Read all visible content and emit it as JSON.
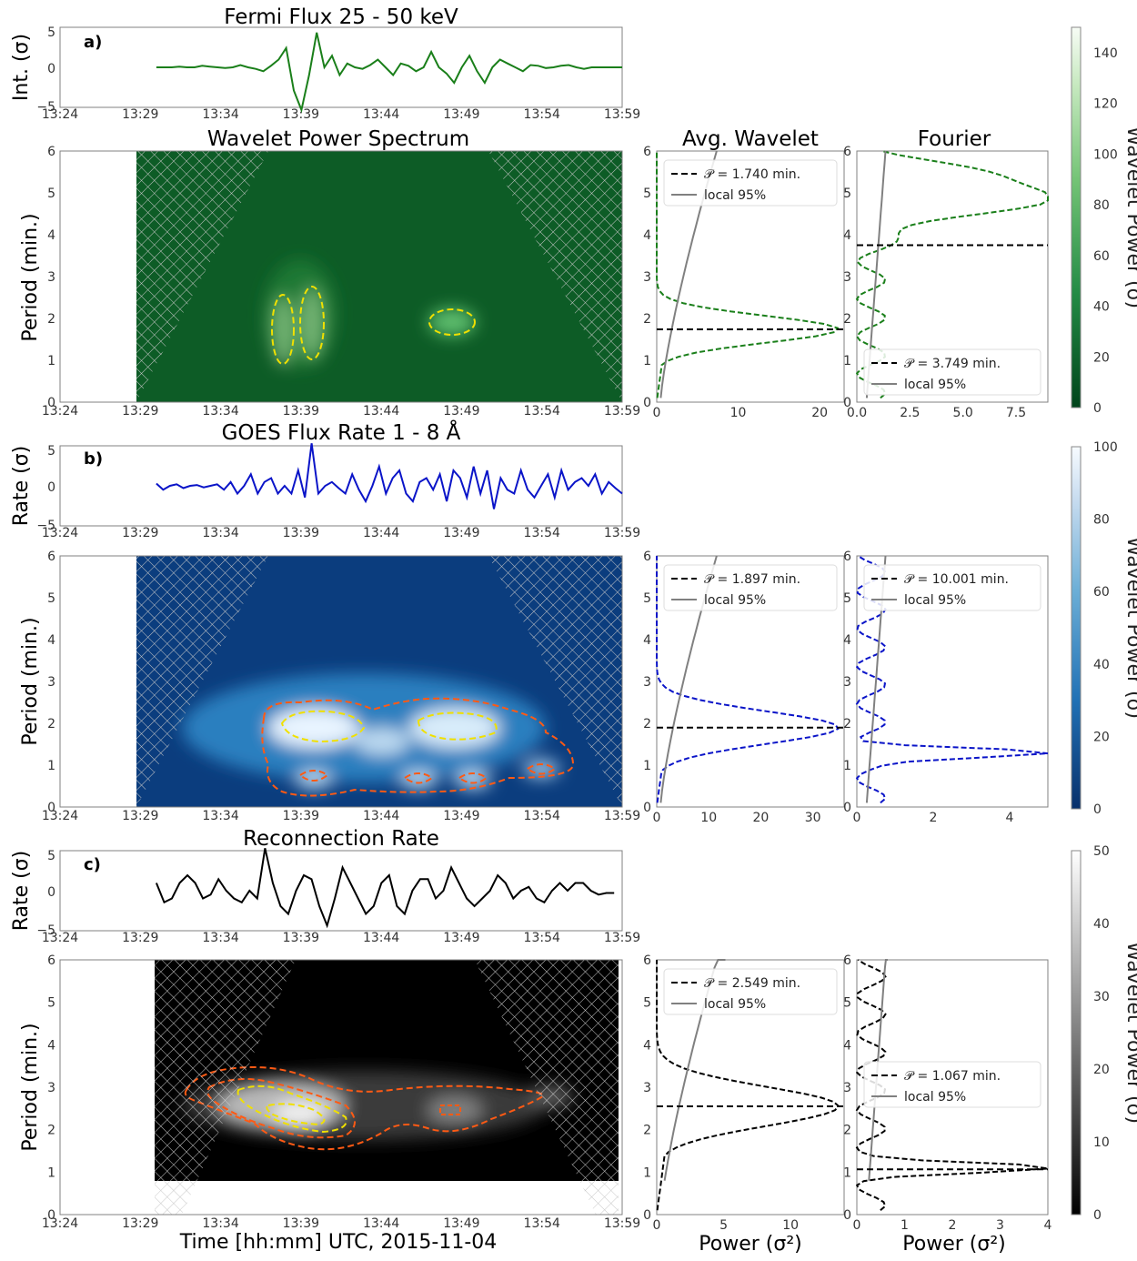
{
  "figure": {
    "xlabel": "Time [hh:mm] UTC, 2015-11-04",
    "power_label": "Power (σ²)",
    "avg_title": "Avg. Wavelet",
    "fourier_title": "Fourier",
    "time_ticks": [
      "13:24",
      "13:29",
      "13:34",
      "13:39",
      "13:44",
      "13:49",
      "13:54",
      "13:59"
    ],
    "period_ticks": [
      0,
      1,
      2,
      3,
      4,
      5,
      6
    ],
    "period_label": "Period (min.)",
    "colorbar_label": "Wavelet Power (σ)"
  },
  "rows": [
    {
      "letter": "a)",
      "title": "Fermi Flux 25 - 50 keV",
      "ts_ylabel": "Int. (σ)",
      "spec_title": "Wavelet Power Spectrum",
      "color": "#1a7f1a",
      "series": {
        "start_min": 6.0,
        "end_min": 35.0,
        "values": [
          0,
          0,
          0,
          0.1,
          0,
          0,
          0.2,
          0.1,
          0,
          -0.1,
          0,
          0.3,
          0,
          -0.2,
          -0.5,
          0.2,
          1,
          2.5,
          -3,
          -5.5,
          -1,
          4.5,
          0,
          1.5,
          -1,
          0.5,
          0,
          -0.2,
          0.3,
          1,
          0,
          -1,
          0.5,
          0.2,
          -0.5,
          0,
          2,
          0,
          -0.8,
          -2,
          0,
          1.5,
          -0.5,
          -2,
          0,
          1,
          0.5,
          0,
          -0.5,
          0.3,
          0.2,
          -0.1,
          0,
          0.2,
          0.3,
          0,
          -0.2,
          0,
          0,
          0,
          0,
          0
        ]
      },
      "colorbar": {
        "max": 150,
        "ticks": [
          0,
          20,
          40,
          60,
          80,
          100,
          120,
          140
        ]
      },
      "avg": {
        "legend_p": "𝒫 = 1.740 min.",
        "legend_local": "local 95%",
        "peak": 1.74,
        "xmax": 23,
        "xticks": [
          0,
          10,
          20
        ],
        "legend_pos": "top"
      },
      "fourier": {
        "legend_p": "𝒫 = 3.749 min.",
        "legend_local": "local 95%",
        "peak": 3.749,
        "xmax": 9,
        "xticks": [
          0.0,
          2.5,
          5.0,
          7.5
        ],
        "xtick_labels": [
          "0.0",
          "2.5",
          "5.0",
          "7.5"
        ],
        "legend_pos": "bottom"
      }
    },
    {
      "letter": "b)",
      "title": "GOES Flux Rate 1 - 8 Å",
      "ts_ylabel": "Rate (σ)",
      "color": "#0a14c8",
      "series": {
        "start_min": 6.0,
        "end_min": 35.0,
        "values": [
          0.3,
          -0.5,
          0,
          0.2,
          -0.3,
          0,
          0.1,
          -0.2,
          0,
          0.2,
          -0.5,
          0.5,
          -1,
          0,
          1.5,
          -1,
          0.5,
          1,
          -1,
          0,
          -1,
          2,
          -1.5,
          5.5,
          -1,
          0,
          0.5,
          -0.3,
          -1,
          1.5,
          -0.5,
          -2,
          0,
          2.5,
          -1,
          1,
          2,
          -1,
          -2,
          0.5,
          1,
          -0.5,
          1.5,
          -2,
          2,
          1,
          -1.5,
          2.5,
          -1,
          2,
          -3,
          1,
          -0.5,
          -1,
          2,
          -0.5,
          -1.5,
          0,
          1.5,
          -1.5,
          2,
          -0.5,
          0.5,
          1,
          0,
          1.5,
          -1,
          0.5,
          -0.3,
          -1
        ]
      },
      "colorbar": {
        "max": 100,
        "ticks": [
          0,
          20,
          40,
          60,
          80,
          100
        ]
      },
      "avg": {
        "legend_p": "𝒫 = 1.897 min.",
        "legend_local": "local 95%",
        "peak": 1.897,
        "xmax": 36,
        "xticks": [
          0,
          10,
          20,
          30
        ],
        "legend_pos": "top"
      },
      "fourier": {
        "legend_p": "𝒫 = 10.001 min.",
        "legend_local": "local 95%",
        "peak": 10.001,
        "xmax": 5,
        "xticks": [
          0,
          2,
          4
        ],
        "xtick_labels": [
          "0",
          "2",
          "4"
        ],
        "legend_pos": "top"
      }
    },
    {
      "letter": "c)",
      "title": "Reconnection Rate",
      "ts_ylabel": "Rate (σ)",
      "color": "#000000",
      "series": {
        "start_min": 6.0,
        "end_min": 34.5,
        "values": [
          1,
          -1.5,
          -1,
          1,
          2,
          1,
          -1,
          -0.5,
          1.5,
          0,
          -1,
          -1.5,
          0,
          -1,
          5.5,
          1,
          -2,
          -3,
          0,
          2,
          1.5,
          -2,
          -4.5,
          -1,
          3,
          1,
          -1,
          -3,
          -2,
          1,
          2,
          -2,
          -3,
          0,
          1.5,
          1.5,
          -1,
          0,
          3,
          1,
          -1,
          -2,
          -1,
          0,
          2,
          1,
          -1,
          0,
          0.5,
          -1,
          -1.5,
          0,
          1,
          0,
          1,
          1,
          0,
          -0.5,
          -0.3,
          -0.3
        ]
      },
      "colorbar": {
        "max": 50,
        "ticks": [
          0,
          10,
          20,
          30,
          40,
          50
        ]
      },
      "avg": {
        "legend_p": "𝒫 = 2.549 min.",
        "legend_local": "local 95%",
        "peak": 2.549,
        "xmax": 14,
        "xticks": [
          0,
          5,
          10
        ],
        "legend_pos": "top"
      },
      "fourier": {
        "legend_p": "𝒫 = 1.067 min.",
        "legend_local": "local 95%",
        "peak": 1.067,
        "xmax": 4,
        "xticks": [
          0,
          1,
          2,
          3,
          4
        ],
        "xtick_labels": [
          "0",
          "1",
          "2",
          "3",
          "4"
        ],
        "legend_pos": "mid"
      }
    }
  ],
  "chart_data": [
    {
      "type": "line",
      "title": "Fermi Flux 25 - 50 keV",
      "ylabel": "Int. (σ)",
      "ylim": [
        -5,
        5
      ],
      "x_range": [
        "13:24",
        "13:59"
      ]
    },
    {
      "type": "heatmap",
      "title": "Wavelet Power Spectrum",
      "ylabel": "Period (min.)",
      "ylim": [
        0,
        6
      ],
      "colorbar": "Wavelet Power (σ)",
      "zlim": [
        0,
        150
      ],
      "peaks": [
        {
          "time": "13:38",
          "period": 1.8
        },
        {
          "time": "13:40",
          "period": 1.9
        },
        {
          "time": "13:48.5",
          "period": 2.0
        }
      ]
    },
    {
      "type": "line",
      "title": "Avg. Wavelet",
      "peak_period": 1.74,
      "xlim": [
        0,
        23
      ]
    },
    {
      "type": "line",
      "title": "Fourier",
      "peak_period": 3.749,
      "xlim": [
        0,
        9
      ]
    },
    {
      "type": "line",
      "title": "GOES Flux Rate 1 - 8 Å",
      "ylabel": "Rate (σ)",
      "ylim": [
        -5,
        5
      ]
    },
    {
      "type": "heatmap",
      "ylabel": "Period (min.)",
      "ylim": [
        0,
        6
      ],
      "zlim": [
        0,
        100
      ]
    },
    {
      "type": "line",
      "title": "Avg. Wavelet",
      "peak_period": 1.897,
      "xlim": [
        0,
        36
      ]
    },
    {
      "type": "line",
      "title": "Fourier",
      "peak_period": 10.001,
      "xlim": [
        0,
        5
      ]
    },
    {
      "type": "line",
      "title": "Reconnection Rate",
      "ylabel": "Rate (σ)",
      "ylim": [
        -5,
        5
      ]
    },
    {
      "type": "heatmap",
      "ylabel": "Period (min.)",
      "ylim": [
        0,
        6
      ],
      "zlim": [
        0,
        50
      ]
    },
    {
      "type": "line",
      "title": "Avg. Wavelet",
      "peak_period": 2.549,
      "xlim": [
        0,
        14
      ]
    },
    {
      "type": "line",
      "title": "Fourier",
      "peak_period": 1.067,
      "xlim": [
        0,
        4
      ]
    }
  ]
}
